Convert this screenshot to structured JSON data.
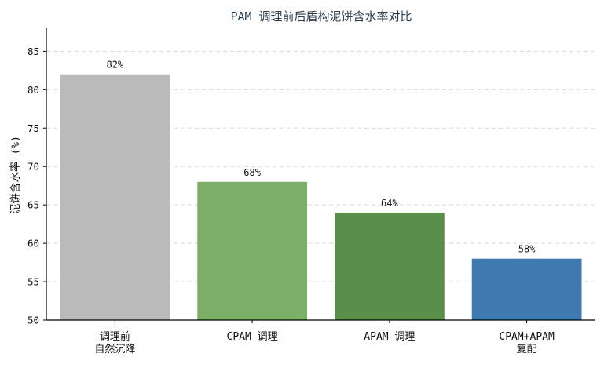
{
  "chart_data": {
    "type": "bar",
    "title": "PAM 调理前后盾构泥饼含水率对比",
    "ylabel": "泥饼含水率 (%)",
    "xlabel": "",
    "categories": [
      [
        "调理前",
        "自然沉降"
      ],
      [
        "CPAM 调理"
      ],
      [
        "APAM 调理"
      ],
      [
        "CPAM+APAM",
        "复配"
      ]
    ],
    "values": [
      82,
      68,
      64,
      58
    ],
    "value_labels": [
      "82%",
      "68%",
      "64%",
      "58%"
    ],
    "colors": [
      "#bababa",
      "#7daf68",
      "#5a8f4b",
      "#3e7ab0"
    ],
    "ylim": [
      50,
      88
    ],
    "yticks": [
      50,
      55,
      60,
      65,
      70,
      75,
      80,
      85
    ],
    "grid": true,
    "grid_axis": "y"
  }
}
